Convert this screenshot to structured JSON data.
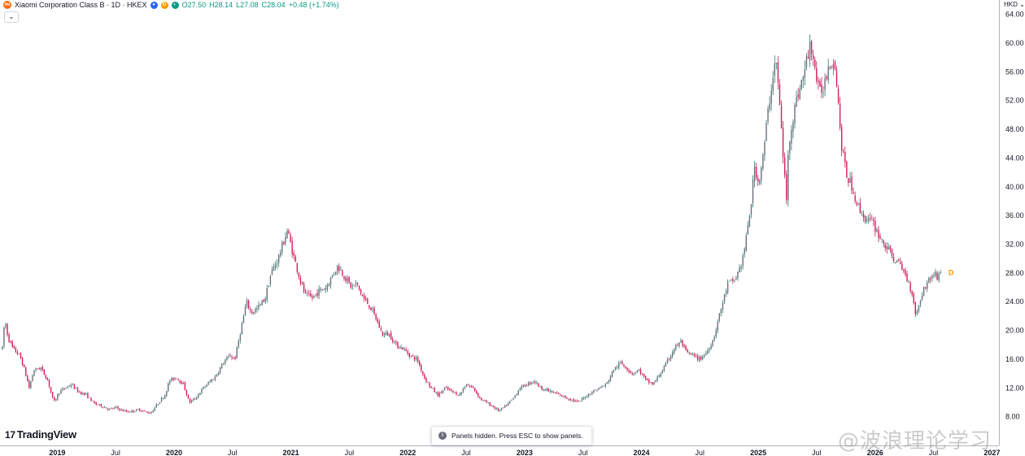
{
  "header": {
    "symbol": "Xiaomi Corporation Class B · 1D · HKEX",
    "open": "O27.50",
    "high": "H28.14",
    "low": "L27.08",
    "close": "C28.04",
    "change": "+0.48 (+1.74%)",
    "logo_text": "mi",
    "badge_d": "D",
    "collapse_glyph": "⌄"
  },
  "currency": "HKD",
  "branding": {
    "mark": "17",
    "name": "TradingView"
  },
  "toast": {
    "icon": "i",
    "text": "Panels hidden. Press ESC to show panels."
  },
  "watermark": "@波浪理论学习",
  "last_marker": "D",
  "colors": {
    "up": "#089981",
    "down": "#f23645",
    "candle": "#c2185b",
    "axis": "#131722",
    "accent": "#ff9800"
  },
  "chart_data": {
    "type": "candlestick",
    "title": "Xiaomi Corporation Class B · 1D · HKEX",
    "currency": "HKD",
    "ylim": [
      4,
      66
    ],
    "y_ticks": [
      8,
      12,
      16,
      20,
      24,
      28,
      32,
      36,
      40,
      44,
      48,
      52,
      56,
      60,
      64
    ],
    "y_tick_labels": [
      "8.00",
      "12.00",
      "16.00",
      "20.00",
      "24.00",
      "28.00",
      "32.00",
      "36.00",
      "40.00",
      "44.00",
      "48.00",
      "52.00",
      "56.00",
      "60.00",
      "64.00"
    ],
    "x_ticks": [
      {
        "label": "2019",
        "t": 2019.0,
        "year": true
      },
      {
        "label": "Jul",
        "t": 2019.5,
        "year": false
      },
      {
        "label": "2020",
        "t": 2020.0,
        "year": true
      },
      {
        "label": "Jul",
        "t": 2020.5,
        "year": false
      },
      {
        "label": "2021",
        "t": 2021.0,
        "year": true
      },
      {
        "label": "Jul",
        "t": 2021.5,
        "year": false
      },
      {
        "label": "2022",
        "t": 2022.0,
        "year": true
      },
      {
        "label": "Jul",
        "t": 2022.5,
        "year": false
      },
      {
        "label": "2023",
        "t": 2023.0,
        "year": true
      },
      {
        "label": "Jul",
        "t": 2023.5,
        "year": false
      },
      {
        "label": "2024",
        "t": 2024.0,
        "year": true
      },
      {
        "label": "Jul",
        "t": 2024.5,
        "year": false
      },
      {
        "label": "2025",
        "t": 2025.0,
        "year": true
      },
      {
        "label": "Jul",
        "t": 2025.5,
        "year": false
      },
      {
        "label": "2026",
        "t": 2026.0,
        "year": true
      },
      {
        "label": "Jul",
        "t": 2026.5,
        "year": false
      },
      {
        "label": "2027",
        "t": 2027.0,
        "year": true
      }
    ],
    "xlim": [
      2018.51,
      2027.06
    ],
    "price_path": [
      [
        2018.53,
        17.5
      ],
      [
        2018.55,
        21.5
      ],
      [
        2018.58,
        19.0
      ],
      [
        2018.62,
        17.5
      ],
      [
        2018.68,
        16.5
      ],
      [
        2018.72,
        14.5
      ],
      [
        2018.76,
        12.0
      ],
      [
        2018.8,
        14.5
      ],
      [
        2018.86,
        14.8
      ],
      [
        2018.92,
        13.0
      ],
      [
        2018.97,
        10.0
      ],
      [
        2019.02,
        11.5
      ],
      [
        2019.07,
        12.0
      ],
      [
        2019.12,
        12.5
      ],
      [
        2019.18,
        11.5
      ],
      [
        2019.25,
        11.0
      ],
      [
        2019.32,
        9.8
      ],
      [
        2019.38,
        9.5
      ],
      [
        2019.45,
        9.0
      ],
      [
        2019.5,
        9.3
      ],
      [
        2019.55,
        8.9
      ],
      [
        2019.6,
        8.7
      ],
      [
        2019.65,
        8.8
      ],
      [
        2019.7,
        9.0
      ],
      [
        2019.75,
        8.7
      ],
      [
        2019.8,
        8.5
      ],
      [
        2019.85,
        9.6
      ],
      [
        2019.92,
        11.0
      ],
      [
        2019.96,
        13.0
      ],
      [
        2020.02,
        13.5
      ],
      [
        2020.08,
        12.5
      ],
      [
        2020.13,
        10.0
      ],
      [
        2020.18,
        10.5
      ],
      [
        2020.25,
        12.0
      ],
      [
        2020.3,
        12.8
      ],
      [
        2020.35,
        13.5
      ],
      [
        2020.42,
        15.5
      ],
      [
        2020.48,
        16.5
      ],
      [
        2020.52,
        16.0
      ],
      [
        2020.57,
        20.0
      ],
      [
        2020.62,
        24.0
      ],
      [
        2020.66,
        22.5
      ],
      [
        2020.71,
        23.0
      ],
      [
        2020.78,
        24.5
      ],
      [
        2020.83,
        28.0
      ],
      [
        2020.89,
        30.0
      ],
      [
        2020.93,
        32.0
      ],
      [
        2020.97,
        34.0
      ],
      [
        2021.02,
        30.5
      ],
      [
        2021.08,
        27.0
      ],
      [
        2021.12,
        25.0
      ],
      [
        2021.18,
        24.5
      ],
      [
        2021.24,
        25.5
      ],
      [
        2021.3,
        26.0
      ],
      [
        2021.35,
        27.5
      ],
      [
        2021.4,
        29.0
      ],
      [
        2021.46,
        27.5
      ],
      [
        2021.52,
        26.0
      ],
      [
        2021.56,
        26.5
      ],
      [
        2021.62,
        24.5
      ],
      [
        2021.67,
        23.5
      ],
      [
        2021.72,
        22.0
      ],
      [
        2021.78,
        19.5
      ],
      [
        2021.84,
        19.5
      ],
      [
        2021.9,
        18.0
      ],
      [
        2021.96,
        17.5
      ],
      [
        2022.02,
        16.5
      ],
      [
        2022.08,
        16.0
      ],
      [
        2022.14,
        13.5
      ],
      [
        2022.2,
        12.0
      ],
      [
        2022.26,
        11.0
      ],
      [
        2022.32,
        12.0
      ],
      [
        2022.38,
        11.5
      ],
      [
        2022.44,
        11.0
      ],
      [
        2022.5,
        12.5
      ],
      [
        2022.56,
        12.0
      ],
      [
        2022.62,
        10.5
      ],
      [
        2022.67,
        10.0
      ],
      [
        2022.72,
        9.5
      ],
      [
        2022.78,
        8.8
      ],
      [
        2022.84,
        9.5
      ],
      [
        2022.9,
        10.5
      ],
      [
        2022.96,
        12.0
      ],
      [
        2023.02,
        12.5
      ],
      [
        2023.08,
        13.0
      ],
      [
        2023.14,
        12.0
      ],
      [
        2023.22,
        11.5
      ],
      [
        2023.3,
        11.0
      ],
      [
        2023.38,
        10.5
      ],
      [
        2023.46,
        10.0
      ],
      [
        2023.52,
        10.8
      ],
      [
        2023.58,
        11.5
      ],
      [
        2023.64,
        12.0
      ],
      [
        2023.7,
        12.5
      ],
      [
        2023.76,
        14.5
      ],
      [
        2023.82,
        15.5
      ],
      [
        2023.86,
        15.0
      ],
      [
        2023.92,
        14.0
      ],
      [
        2023.98,
        14.5
      ],
      [
        2024.04,
        13.0
      ],
      [
        2024.1,
        12.5
      ],
      [
        2024.14,
        13.5
      ],
      [
        2024.2,
        15.0
      ],
      [
        2024.28,
        17.5
      ],
      [
        2024.34,
        18.5
      ],
      [
        2024.38,
        17.0
      ],
      [
        2024.44,
        16.5
      ],
      [
        2024.5,
        16.0
      ],
      [
        2024.56,
        17.0
      ],
      [
        2024.62,
        19.0
      ],
      [
        2024.68,
        23.0
      ],
      [
        2024.74,
        26.5
      ],
      [
        2024.8,
        27.0
      ],
      [
        2024.86,
        29.5
      ],
      [
        2024.9,
        33.0
      ],
      [
        2024.94,
        38.0
      ],
      [
        2024.97,
        43.0
      ],
      [
        2025.0,
        40.5
      ],
      [
        2025.04,
        44.0
      ],
      [
        2025.08,
        50.0
      ],
      [
        2025.12,
        55.0
      ],
      [
        2025.15,
        58.0
      ],
      [
        2025.18,
        52.0
      ],
      [
        2025.21,
        45.0
      ],
      [
        2025.24,
        38.0
      ],
      [
        2025.26,
        46.0
      ],
      [
        2025.3,
        50.0
      ],
      [
        2025.34,
        53.0
      ],
      [
        2025.38,
        55.0
      ],
      [
        2025.42,
        58.0
      ],
      [
        2025.45,
        60.0
      ],
      [
        2025.48,
        57.0
      ],
      [
        2025.52,
        53.0
      ],
      [
        2025.56,
        54.0
      ],
      [
        2025.6,
        57.0
      ],
      [
        2025.64,
        58.0
      ],
      [
        2025.67,
        55.0
      ],
      [
        2025.71,
        46.0
      ],
      [
        2025.75,
        42.0
      ],
      [
        2025.8,
        40.0
      ],
      [
        2025.86,
        37.0
      ],
      [
        2025.92,
        35.5
      ],
      [
        2025.98,
        35.0
      ],
      [
        2026.04,
        33.0
      ],
      [
        2026.1,
        31.5
      ],
      [
        2026.16,
        30.0
      ],
      [
        2026.22,
        29.0
      ],
      [
        2026.28,
        27.0
      ],
      [
        2026.32,
        25.0
      ],
      [
        2026.35,
        22.0
      ],
      [
        2026.38,
        24.0
      ],
      [
        2026.42,
        26.0
      ],
      [
        2026.46,
        27.0
      ],
      [
        2026.5,
        28.0
      ],
      [
        2026.53,
        27.5
      ],
      [
        2026.56,
        28.0
      ]
    ],
    "last_value": 28.04
  }
}
